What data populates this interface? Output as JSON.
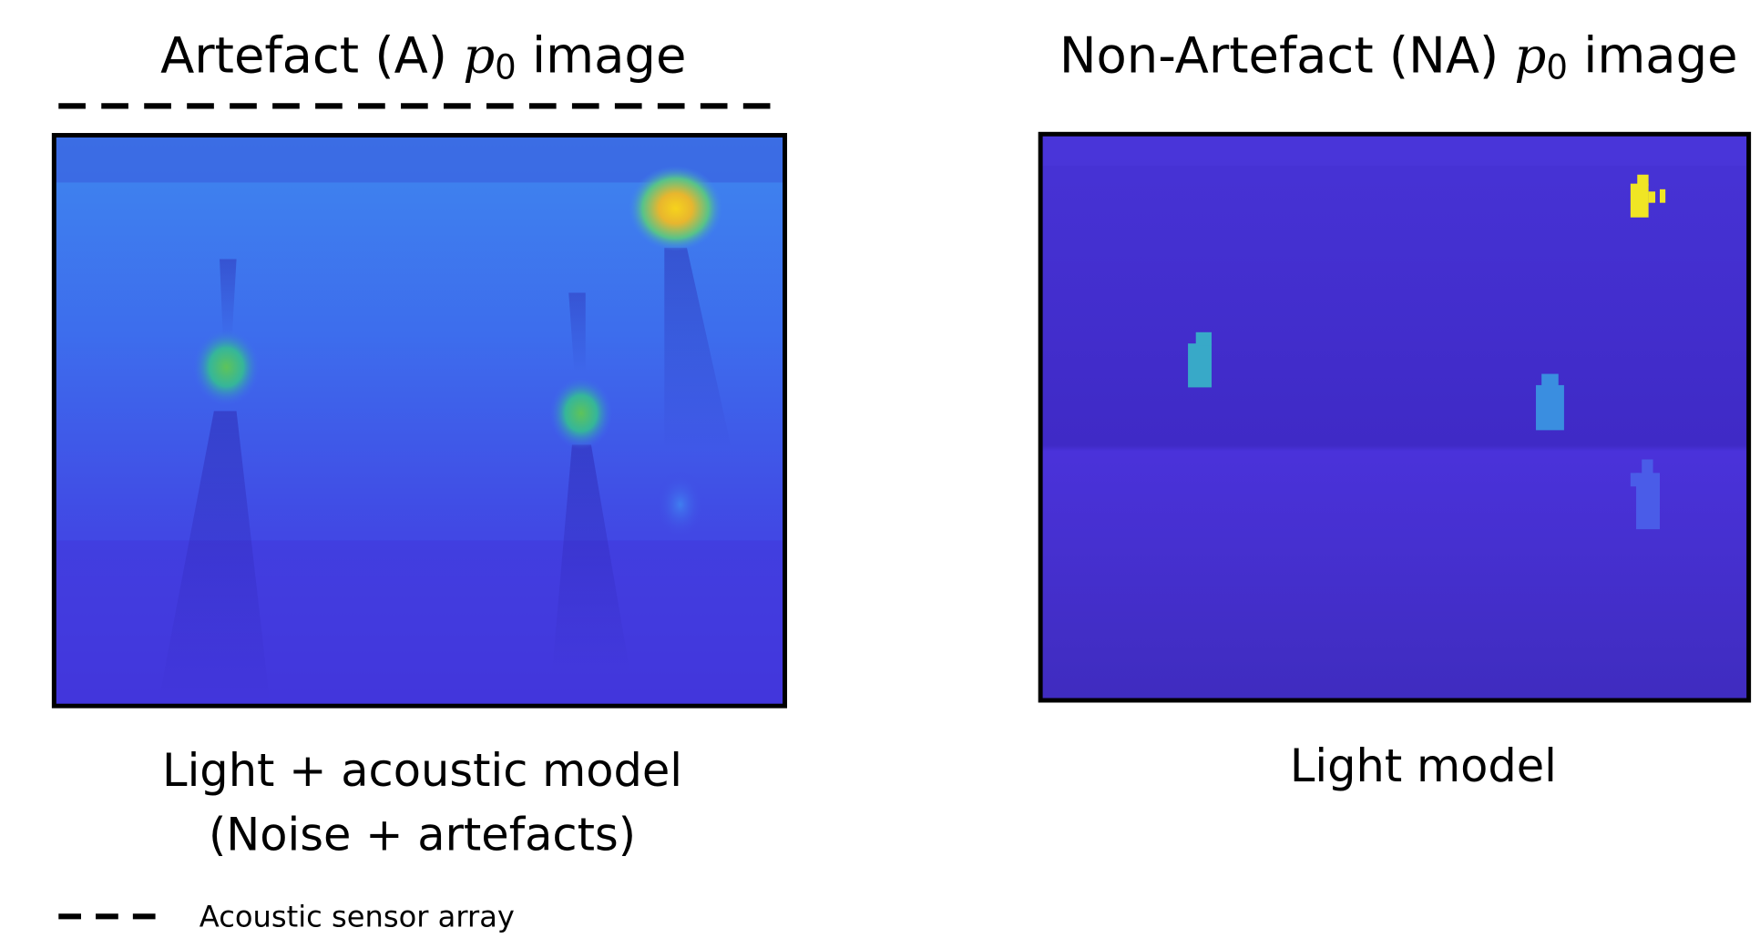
{
  "panels": [
    {
      "title": {
        "before": "Artefact (A)",
        "symbol": "p",
        "subscript": "0",
        "after": "image"
      },
      "caption": [
        "Light + acoustic model",
        "(Noise + artefacts)"
      ]
    },
    {
      "title": {
        "before": "Non-Artefact (NA)",
        "symbol": "p",
        "subscript": "0",
        "after": "image"
      },
      "caption": [
        "Light model"
      ]
    }
  ],
  "legend": {
    "label": "Acoustic sensor array"
  }
}
